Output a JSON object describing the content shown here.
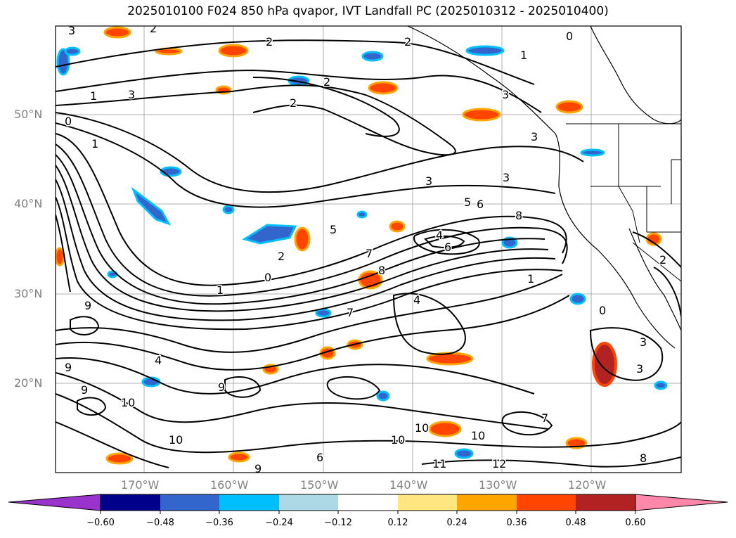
{
  "title": "2025010100 F024 850 hPa qvapor, IVT Landfall PC (2025010312 - 2025010400)",
  "lat_labels": [
    "50°N",
    "40°N",
    "30°N",
    "20°N"
  ],
  "lon_labels": [
    "170°W",
    "160°W",
    "150°W",
    "140°W",
    "130°W",
    "120°W"
  ],
  "colorbar": {
    "ticks": [
      "−0.60",
      "−0.48",
      "−0.36",
      "−0.24",
      "−0.12",
      "0.12",
      "0.24",
      "0.36",
      "0.48",
      "0.60"
    ],
    "colors": [
      "#9933cc",
      "#00008b",
      "#3366cc",
      "#00bfff",
      "#add8e6",
      "#ffffff",
      "#ffe680",
      "#ffa500",
      "#ff4500",
      "#b22222",
      "#ff88aa"
    ]
  },
  "contour_labels": [
    "3",
    "2",
    "2",
    "1",
    "0",
    "2",
    "2",
    "3",
    "1",
    "2",
    "3",
    "3",
    "0",
    "1",
    "3",
    "3",
    "5",
    "6",
    "4",
    "6",
    "8",
    "5",
    "7",
    "8",
    "2",
    "0",
    "1",
    "1",
    "9",
    "4",
    "7",
    "0",
    "3",
    "9",
    "9",
    "10",
    "10",
    "10",
    "11",
    "12",
    "8",
    "9",
    "10",
    "10",
    "7",
    "6",
    "9",
    "4",
    "2",
    "3"
  ]
}
